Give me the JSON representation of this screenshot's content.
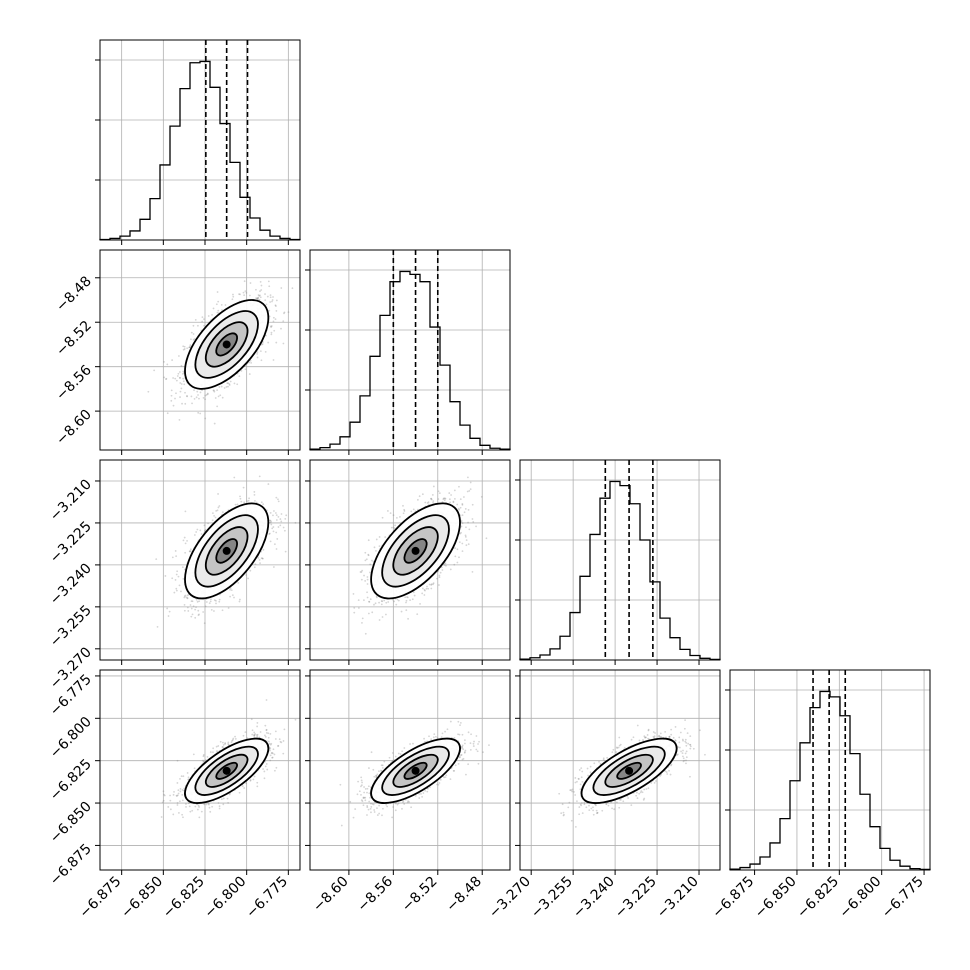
{
  "chart_data": {
    "type": "corner",
    "grid": true,
    "params": [
      {
        "mean": -6.812,
        "sd": 0.0125,
        "q16": -6.8245,
        "q50": -6.812,
        "q84": -6.7995,
        "range": [
          -6.888,
          -6.768
        ],
        "ticks": [
          -6.875,
          -6.85,
          -6.825,
          -6.8,
          -6.775
        ],
        "tick_labels": [
          "−6.875",
          "−6.850",
          "−6.825",
          "−6.800",
          "−6.775"
        ]
      },
      {
        "mean": -8.54,
        "sd": 0.02,
        "q16": -8.56,
        "q50": -8.54,
        "q84": -8.52,
        "range": [
          -8.635,
          -8.455
        ],
        "ticks": [
          -8.6,
          -8.56,
          -8.52,
          -8.48
        ],
        "tick_labels": [
          "−8.60",
          "−8.56",
          "−8.52",
          "−8.48"
        ]
      },
      {
        "mean": -3.235,
        "sd": 0.0085,
        "q16": -3.2435,
        "q50": -3.235,
        "q84": -3.2265,
        "range": [
          -3.274,
          -3.2025
        ],
        "ticks": [
          -3.27,
          -3.255,
          -3.24,
          -3.225,
          -3.21
        ],
        "tick_labels": [
          "−3.270",
          "−3.255",
          "−3.240",
          "−3.225",
          "−3.210"
        ]
      },
      {
        "mean": -6.831,
        "sd": 0.0095,
        "q16": -6.8405,
        "q50": -6.831,
        "q84": -6.8215,
        "range": [
          -6.8895,
          -6.7715
        ],
        "ticks": [
          -6.875,
          -6.85,
          -6.825,
          -6.8,
          -6.775
        ],
        "tick_labels": [
          "−6.875",
          "−6.850",
          "−6.825",
          "−6.800",
          "−6.775"
        ]
      }
    ],
    "correlations": [
      [
        1,
        0.6,
        0.6,
        0.7
      ],
      [
        0.6,
        1,
        0.6,
        0.7
      ],
      [
        0.6,
        0.6,
        1,
        0.7
      ],
      [
        0.7,
        0.7,
        0.7,
        1
      ]
    ],
    "histograms": [
      {
        "bins": 20,
        "counts": [
          2,
          6,
          15,
          35,
          80,
          160,
          290,
          440,
          585,
          685,
          690,
          590,
          450,
          300,
          165,
          85,
          38,
          15,
          6,
          2
        ]
      },
      {
        "bins": 20,
        "counts": [
          3,
          8,
          20,
          45,
          95,
          185,
          320,
          460,
          575,
          610,
          600,
          575,
          420,
          290,
          165,
          85,
          40,
          16,
          6,
          3
        ]
      },
      {
        "bins": 20,
        "counts": [
          3,
          8,
          18,
          40,
          85,
          170,
          300,
          450,
          580,
          640,
          625,
          560,
          430,
          280,
          150,
          80,
          38,
          16,
          6,
          2
        ]
      },
      {
        "bins": 20,
        "counts": [
          3,
          9,
          22,
          48,
          100,
          190,
          330,
          470,
          600,
          660,
          640,
          570,
          430,
          280,
          160,
          80,
          36,
          14,
          5,
          2
        ]
      }
    ],
    "contour_levels_sigma": [
      0.5,
      1.0,
      1.5,
      2.0
    ],
    "scatter_points": 1500
  }
}
